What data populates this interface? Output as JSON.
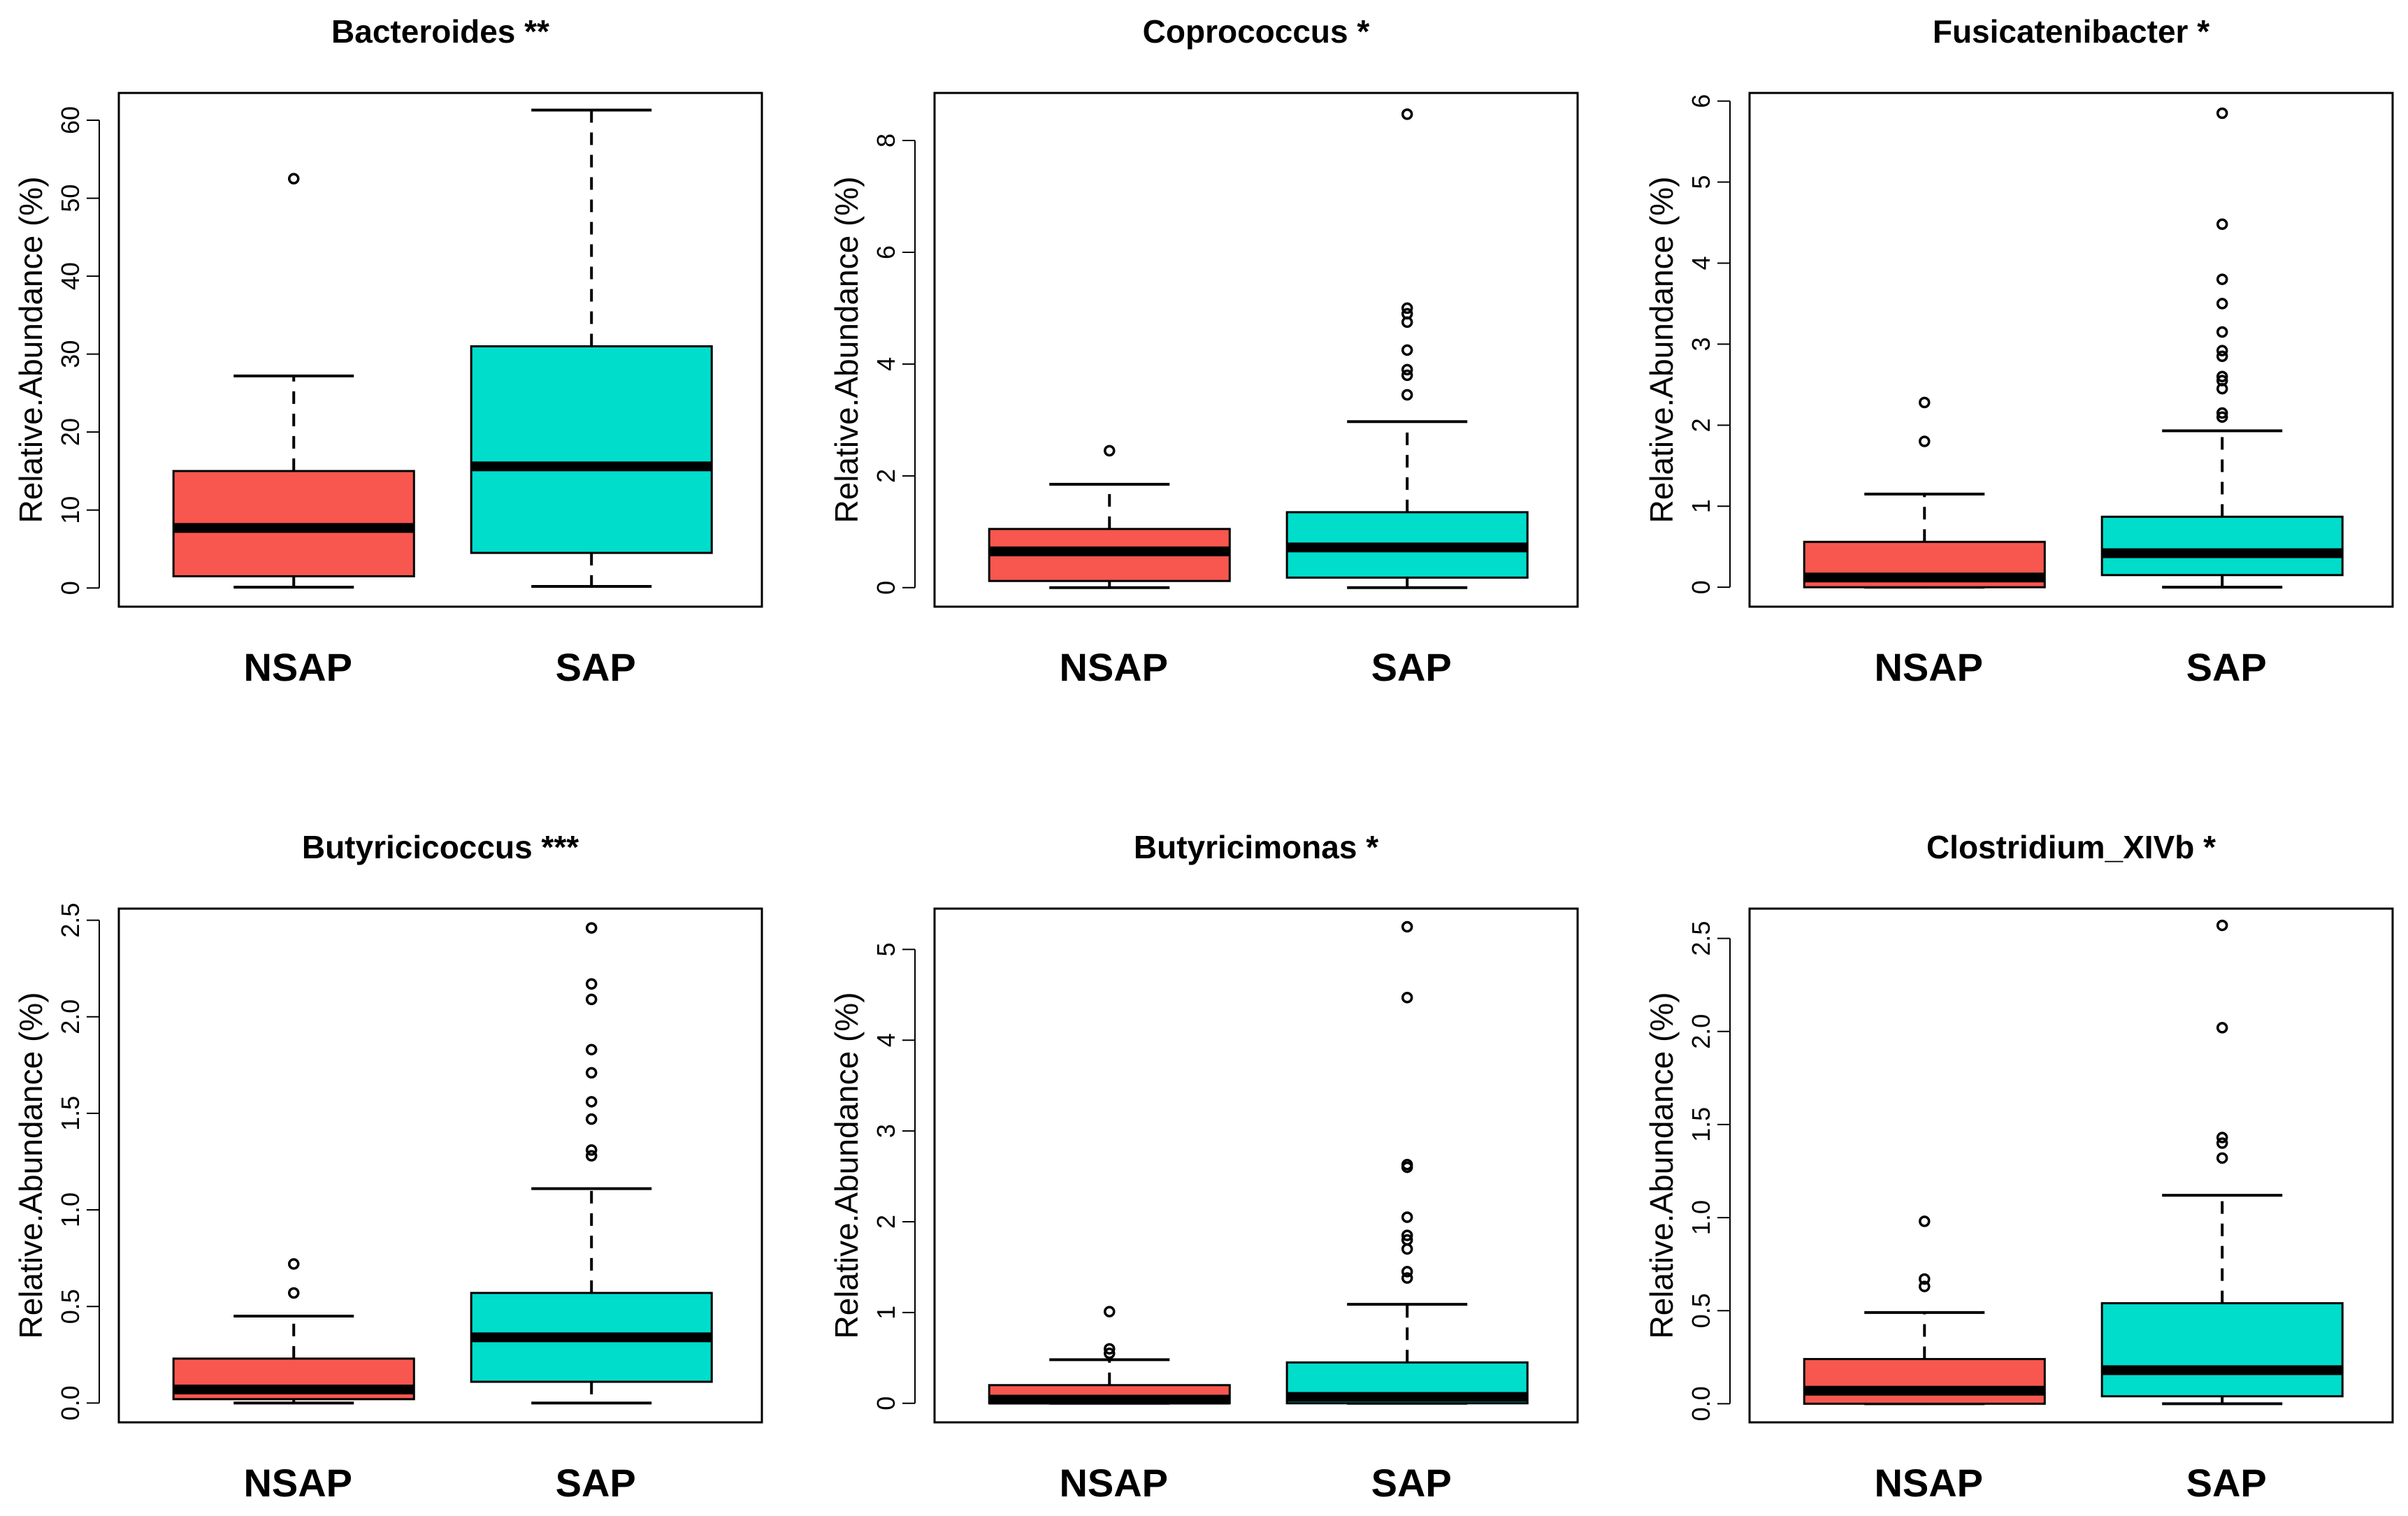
{
  "figure": {
    "description_free": true,
    "colors": {
      "NSAP": "#F8574F",
      "SAP": "#00DDCB",
      "frame": "#000000"
    }
  },
  "chart_data": [
    {
      "type": "boxplot",
      "title": "Bacteroides **",
      "xlabel": "",
      "ylabel": "Relative.Abundance (%)",
      "categories": [
        "NSAP",
        "SAP"
      ],
      "ylim": [
        -2.4,
        63.5
      ],
      "yticks": [
        0,
        10,
        20,
        30,
        40,
        50,
        60
      ],
      "ytick_labels": [
        "0",
        "10",
        "20",
        "30",
        "40",
        "50",
        "60"
      ],
      "boxes": [
        {
          "group": "NSAP",
          "color": "#F8574F",
          "whisker_low": 0.1,
          "q1": 1.5,
          "median": 7.7,
          "q3": 15.0,
          "whisker_high": 27.2,
          "outliers": [
            52.5
          ]
        },
        {
          "group": "SAP",
          "color": "#00DDCB",
          "whisker_low": 0.2,
          "q1": 4.5,
          "median": 15.6,
          "q3": 31.0,
          "whisker_high": 61.3,
          "outliers": []
        }
      ]
    },
    {
      "type": "boxplot",
      "title": "Coprococcus *",
      "xlabel": "",
      "ylabel": "Relative.Abundance (%)",
      "categories": [
        "NSAP",
        "SAP"
      ],
      "ylim": [
        -0.34,
        8.85
      ],
      "yticks": [
        0,
        2,
        4,
        6,
        8
      ],
      "ytick_labels": [
        "0",
        "2",
        "4",
        "6",
        "8"
      ],
      "boxes": [
        {
          "group": "NSAP",
          "color": "#F8574F",
          "whisker_low": 0.0,
          "q1": 0.12,
          "median": 0.65,
          "q3": 1.05,
          "whisker_high": 1.85,
          "outliers": [
            2.45
          ]
        },
        {
          "group": "SAP",
          "color": "#00DDCB",
          "whisker_low": 0.0,
          "q1": 0.18,
          "median": 0.72,
          "q3": 1.35,
          "whisker_high": 2.97,
          "outliers": [
            3.45,
            3.8,
            3.9,
            4.25,
            4.75,
            4.9,
            5.0,
            8.47
          ]
        }
      ]
    },
    {
      "type": "boxplot",
      "title": "Fusicatenibacter *",
      "xlabel": "",
      "ylabel": "Relative.Abundance (%)",
      "categories": [
        "NSAP",
        "SAP"
      ],
      "ylim": [
        -0.24,
        6.1
      ],
      "yticks": [
        0,
        1,
        2,
        3,
        4,
        5,
        6
      ],
      "ytick_labels": [
        "0",
        "1",
        "2",
        "3",
        "4",
        "5",
        "6"
      ],
      "boxes": [
        {
          "group": "NSAP",
          "color": "#F8574F",
          "whisker_low": 0.0,
          "q1": 0.0,
          "median": 0.12,
          "q3": 0.56,
          "whisker_high": 1.15,
          "outliers": [
            1.8,
            2.28
          ]
        },
        {
          "group": "SAP",
          "color": "#00DDCB",
          "whisker_low": 0.0,
          "q1": 0.15,
          "median": 0.42,
          "q3": 0.87,
          "whisker_high": 1.93,
          "outliers": [
            2.1,
            2.15,
            2.45,
            2.55,
            2.6,
            2.85,
            2.92,
            3.15,
            3.5,
            3.8,
            4.48,
            5.85
          ]
        }
      ]
    },
    {
      "type": "boxplot",
      "title": "Butyricicoccus ***",
      "xlabel": "",
      "ylabel": "Relative.Abundance (%)",
      "categories": [
        "NSAP",
        "SAP"
      ],
      "ylim": [
        -0.1,
        2.56
      ],
      "yticks": [
        0,
        0.5,
        1.0,
        1.5,
        2.0,
        2.5
      ],
      "ytick_labels": [
        "0.0",
        "0.5",
        "1.0",
        "1.5",
        "2.0",
        "2.5"
      ],
      "boxes": [
        {
          "group": "NSAP",
          "color": "#F8574F",
          "whisker_low": 0.0,
          "q1": 0.02,
          "median": 0.07,
          "q3": 0.23,
          "whisker_high": 0.45,
          "outliers": [
            0.57,
            0.72
          ]
        },
        {
          "group": "SAP",
          "color": "#00DDCB",
          "whisker_low": 0.0,
          "q1": 0.11,
          "median": 0.34,
          "q3": 0.57,
          "whisker_high": 1.11,
          "outliers": [
            1.28,
            1.31,
            1.47,
            1.56,
            1.71,
            1.83,
            2.09,
            2.17,
            2.46
          ]
        }
      ]
    },
    {
      "type": "boxplot",
      "title": "Butyricimonas *",
      "xlabel": "",
      "ylabel": "Relative.Abundance (%)",
      "categories": [
        "NSAP",
        "SAP"
      ],
      "ylim": [
        -0.21,
        5.45
      ],
      "yticks": [
        0,
        1,
        2,
        3,
        4,
        5
      ],
      "ytick_labels": [
        "0",
        "1",
        "2",
        "3",
        "4",
        "5"
      ],
      "boxes": [
        {
          "group": "NSAP",
          "color": "#F8574F",
          "whisker_low": 0.0,
          "q1": 0.0,
          "median": 0.04,
          "q3": 0.2,
          "whisker_high": 0.48,
          "outliers": [
            0.55,
            0.6,
            1.01
          ]
        },
        {
          "group": "SAP",
          "color": "#00DDCB",
          "whisker_low": 0.0,
          "q1": 0.0,
          "median": 0.07,
          "q3": 0.45,
          "whisker_high": 1.09,
          "outliers": [
            1.38,
            1.45,
            1.7,
            1.8,
            1.85,
            2.05,
            2.6,
            2.63,
            4.47,
            5.25
          ]
        }
      ]
    },
    {
      "type": "boxplot",
      "title": "Clostridium_XIVb *",
      "xlabel": "",
      "ylabel": "Relative.Abundance (%)",
      "categories": [
        "NSAP",
        "SAP"
      ],
      "ylim": [
        -0.1,
        2.66
      ],
      "yticks": [
        0,
        0.5,
        1.0,
        1.5,
        2.0,
        2.5
      ],
      "ytick_labels": [
        "0.0",
        "0.5",
        "1.0",
        "1.5",
        "2.0",
        "2.5"
      ],
      "boxes": [
        {
          "group": "NSAP",
          "color": "#F8574F",
          "whisker_low": 0.0,
          "q1": 0.0,
          "median": 0.07,
          "q3": 0.24,
          "whisker_high": 0.49,
          "outliers": [
            0.63,
            0.67,
            0.98
          ]
        },
        {
          "group": "SAP",
          "color": "#00DDCB",
          "whisker_low": 0.0,
          "q1": 0.04,
          "median": 0.18,
          "q3": 0.54,
          "whisker_high": 1.12,
          "outliers": [
            1.32,
            1.4,
            1.43,
            2.02,
            2.57
          ]
        }
      ]
    }
  ]
}
